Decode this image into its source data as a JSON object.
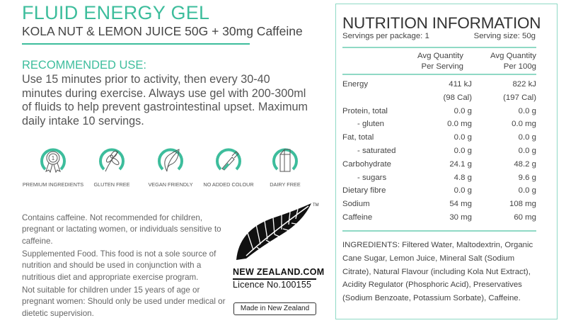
{
  "product": {
    "title": "FLUID ENERGY GEL",
    "subtitle": "KOLA NUT & LEMON JUICE 50G + 30mg Caffeine"
  },
  "recommended": {
    "heading": "RECOMMENDED USE:",
    "text": "Use 15 minutes prior to activity, then every 30-40 minutes during exercise. Always use gel with 200-300ml of fluids to help prevent gastrointestinal upset. Maximum daily intake 10 servings."
  },
  "badges": [
    {
      "icon": "award-ribbon-icon",
      "label": "PREMIUM INGREDIENTS"
    },
    {
      "icon": "wheat-icon",
      "label": "GLUTEN FREE"
    },
    {
      "icon": "leaf-icon",
      "label": "VEGAN FRIENDLY"
    },
    {
      "icon": "dropper-icon",
      "label": "NO ADDED COLOUR"
    },
    {
      "icon": "milk-carton-icon",
      "label": "DAIRY FREE"
    }
  ],
  "warnings": [
    "Contains caffeine. Not recommended for children, pregnant or lactating women, or individuals sensitive to caffeine.",
    "Supplemented Food. This food is not a sole source of nutrition and should be used in conjunction with a nutritious diet and appropriate exercise program.",
    "Not suitable for children under 15 years of age or pregnant women: Should only be used under medical or dietetic supervision."
  ],
  "nz": {
    "logo_text": "NEW ZEALAND.COM",
    "tm": "TM",
    "licence": "Licence No.100155",
    "made_in": "Made in New Zealand"
  },
  "colors": {
    "accent": "#3dbd9c",
    "panel_border": "#8fd9c5"
  },
  "nutrition": {
    "heading": "NUTRITION INFORMATION",
    "servings_per_package": "Servings per package: 1",
    "serving_size": "Serving size: 50g",
    "col1": [
      "Avg Quantity",
      "Per Serving"
    ],
    "col2": [
      "Avg Quantity",
      "Per 100g"
    ],
    "rows": [
      {
        "label": "Energy",
        "per_serving": "411 kJ",
        "per_100g": "822 kJ",
        "indent": false
      },
      {
        "label": "",
        "per_serving": "(98 Cal)",
        "per_100g": "(197 Cal)",
        "indent": false
      },
      {
        "label": "Protein, total",
        "per_serving": "0.0 g",
        "per_100g": "0.0 g",
        "indent": false
      },
      {
        "label": "- gluten",
        "per_serving": "0.0 mg",
        "per_100g": "0.0 mg",
        "indent": true
      },
      {
        "label": "Fat, total",
        "per_serving": "0.0 g",
        "per_100g": "0.0 g",
        "indent": false
      },
      {
        "label": "- saturated",
        "per_serving": "0.0 g",
        "per_100g": "0.0 g",
        "indent": true
      },
      {
        "label": "Carbohydrate",
        "per_serving": "24.1 g",
        "per_100g": "48.2 g",
        "indent": false
      },
      {
        "label": "- sugars",
        "per_serving": "4.8 g",
        "per_100g": "9.6 g",
        "indent": true
      },
      {
        "label": "Dietary fibre",
        "per_serving": "0.0 g",
        "per_100g": "0.0 g",
        "indent": false
      },
      {
        "label": "Sodium",
        "per_serving": "54 mg",
        "per_100g": "108 mg",
        "indent": false
      },
      {
        "label": "Caffeine",
        "per_serving": "30 mg",
        "per_100g": "60 mg",
        "indent": false
      }
    ],
    "ingredients": "INGREDIENTS: Filtered Water, Maltodextrin, Organic Cane Sugar, Lemon Juice, Mineral Salt (Sodium Citrate), Natural Flavour (including Kola Nut Extract), Acidity Regulator (Phosphoric Acid), Preservatives (Sodium Benzoate, Potassium Sorbate), Caffeine."
  }
}
